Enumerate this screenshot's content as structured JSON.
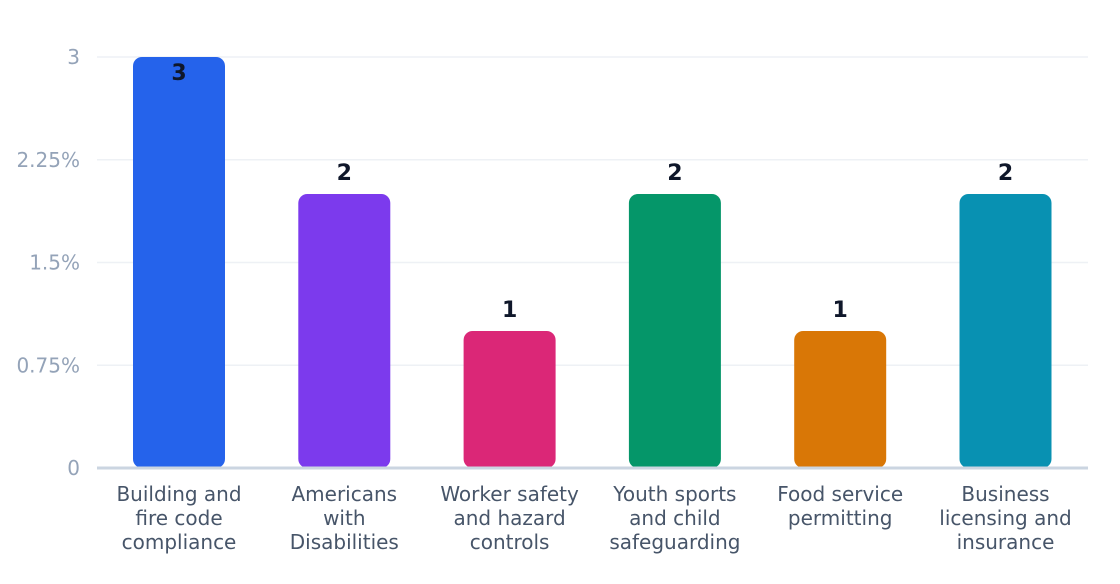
{
  "chart_data": {
    "type": "bar",
    "title": "",
    "xlabel": "",
    "ylabel": "",
    "ylim": [
      0,
      3
    ],
    "y_ticks": [
      {
        "value": 0,
        "label": "0"
      },
      {
        "value": 0.75,
        "label": "0.75%"
      },
      {
        "value": 1.5,
        "label": "1.5%"
      },
      {
        "value": 2.25,
        "label": "2.25%"
      },
      {
        "value": 3,
        "label": "3"
      }
    ],
    "grid": true,
    "categories": [
      [
        "Building and",
        "fire code",
        "compliance"
      ],
      [
        "Americans",
        "with",
        "Disabilities"
      ],
      [
        "Worker safety",
        "and hazard",
        "controls"
      ],
      [
        "Youth sports",
        "and child",
        "safeguarding"
      ],
      [
        "Food service",
        "permitting"
      ],
      [
        "Business",
        "licensing and",
        "insurance"
      ]
    ],
    "values": [
      3,
      2,
      1,
      2,
      1,
      2
    ],
    "data_labels": [
      "3",
      "2",
      "1",
      "2",
      "1",
      "2"
    ],
    "colors": [
      "#2563eb",
      "#7c3aed",
      "#db2777",
      "#059669",
      "#d97706",
      "#0891b2"
    ]
  }
}
